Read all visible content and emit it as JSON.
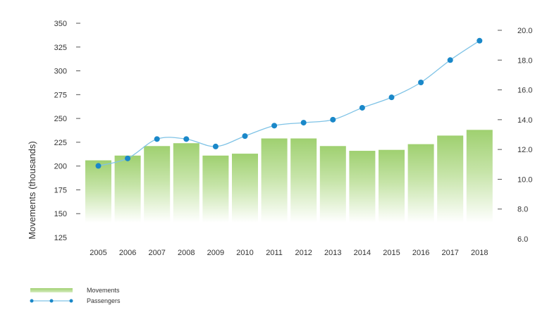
{
  "chart_data": {
    "type": "bar",
    "categories": [
      "2005",
      "2006",
      "2007",
      "2008",
      "2009",
      "2010",
      "2011",
      "2012",
      "2013",
      "2014",
      "2015",
      "2016",
      "2017",
      "2018"
    ],
    "series": [
      {
        "name": "Movements",
        "type": "bar",
        "axis": "left",
        "values": [
          206,
          211,
          221,
          224,
          211,
          213,
          229,
          229,
          221,
          216,
          217,
          223,
          232,
          238
        ]
      },
      {
        "name": "Passengers",
        "type": "line",
        "axis": "right",
        "values": [
          10.9,
          11.4,
          12.7,
          12.7,
          12.2,
          12.9,
          13.6,
          13.8,
          14.0,
          14.8,
          15.5,
          16.5,
          18.0,
          19.3
        ]
      }
    ],
    "ylabel": "Movements (thousands)",
    "ylim": [
      125,
      350
    ],
    "yticks": [
      125,
      150,
      175,
      200,
      225,
      250,
      275,
      300,
      325,
      350
    ],
    "y2lim": [
      6.0,
      20.0
    ],
    "y2ticks": [
      "6.0",
      "8.0",
      "10.0",
      "12.0",
      "14.0",
      "16.0",
      "18.0",
      "20.0"
    ],
    "legend": "bottom-left",
    "grid": false,
    "colors": {
      "bar_top": "#9fd070",
      "bar_bottom": "#ffffff",
      "line": "#7fc3e6",
      "marker": "#1a88c9"
    }
  }
}
